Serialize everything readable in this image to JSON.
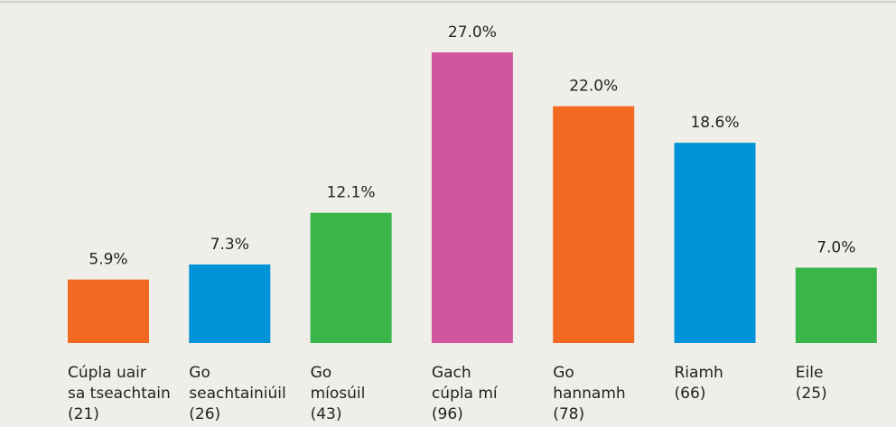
{
  "chart_data": {
    "type": "bar",
    "categories": [
      [
        "Cúpla uair",
        "sa tseachtain",
        "(21)"
      ],
      [
        "Go",
        "seachtainiúil",
        "(26)"
      ],
      [
        "Go",
        "míosúil",
        "(43)"
      ],
      [
        "Gach",
        "cúpla mí",
        "(96)"
      ],
      [
        "Go",
        "hannamh",
        "(78)"
      ],
      [
        "Riamh",
        "(66)"
      ],
      [
        "Eile",
        "(25)"
      ]
    ],
    "values": [
      5.9,
      7.3,
      12.1,
      27.0,
      22.0,
      18.6,
      7.0
    ],
    "value_labels": [
      "5.9%",
      "7.3%",
      "12.1%",
      "27.0%",
      "22.0%",
      "18.6%",
      "7.0%"
    ],
    "colors": [
      "#f26922",
      "#0093d8",
      "#3ab54a",
      "#d2559f",
      "#f26922",
      "#0093d8",
      "#3ab54a"
    ]
  }
}
